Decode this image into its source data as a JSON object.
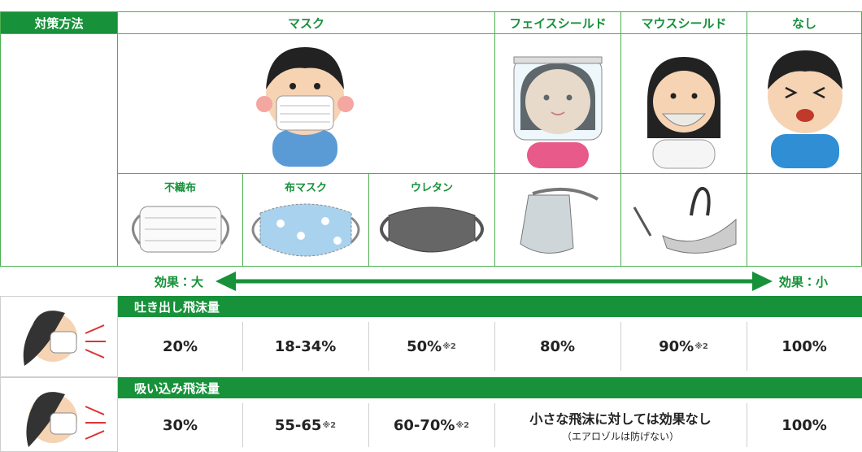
{
  "header": {
    "label": "対策方法",
    "mask": "マスク",
    "face_shield": "フェイスシールド",
    "mouth_shield": "マウスシールド",
    "none": "なし"
  },
  "mask_types": [
    "不織布",
    "布マスク",
    "ウレタン"
  ],
  "effect": {
    "large": "効果：大",
    "small": "効果：小"
  },
  "rows": [
    {
      "title": "吐き出し飛沫量",
      "cells": [
        {
          "text": "20%"
        },
        {
          "text": "18-34%"
        },
        {
          "text": "50%",
          "note": "※2"
        },
        {
          "text": "80%"
        },
        {
          "text": "90%",
          "note": "※2"
        },
        {
          "text": "100%"
        }
      ]
    },
    {
      "title": "吸い込み飛沫量",
      "cells": [
        {
          "text": "30%"
        },
        {
          "text": "55-65",
          "note": "※2"
        },
        {
          "text": "60-70%",
          "note": "※2"
        },
        {
          "text": "小さな飛沫に対しては効果なし",
          "detail": "（エアロゾルは防げない）",
          "span": 2
        },
        {
          "text": "100%"
        }
      ]
    }
  ]
}
